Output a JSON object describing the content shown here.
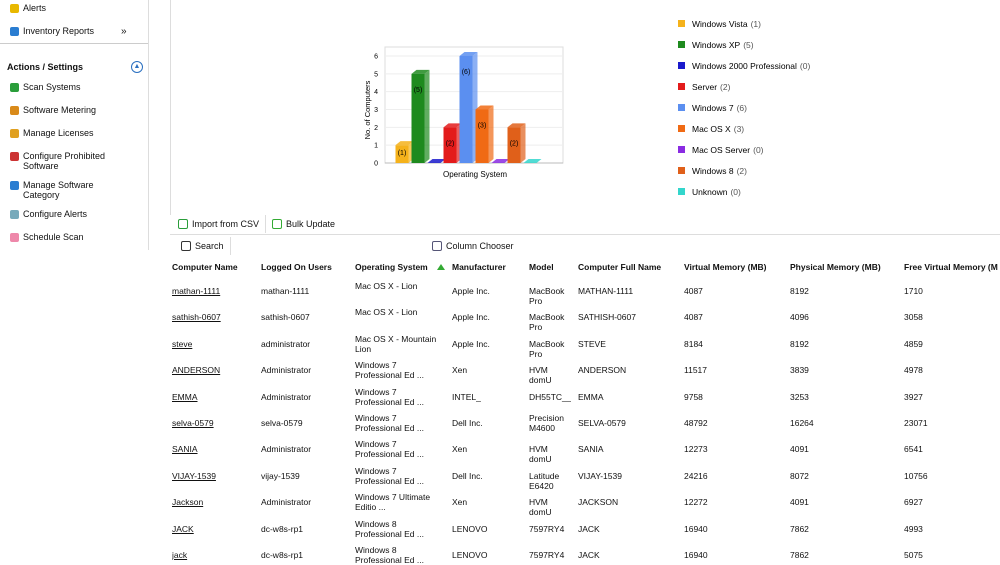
{
  "sidebar": {
    "top_items": [
      "Alerts",
      "Inventory Reports"
    ],
    "expand": "»",
    "section_title": "Actions / Settings",
    "actions": [
      "Scan Systems",
      "Software Metering",
      "Manage Licenses",
      "Configure Prohibited Software",
      "Manage Software Category",
      "Configure Alerts",
      "Schedule Scan"
    ]
  },
  "chart_data": {
    "type": "bar",
    "y_label": "No. of Computers",
    "x_label": "Operating System",
    "categories": [
      "Windows Vista",
      "Windows XP",
      "Windows 2000 Professional",
      "Server",
      "Windows 7",
      "Mac OS X",
      "Mac OS Server",
      "Windows 8",
      "Unknown"
    ],
    "values": [
      1,
      5,
      0,
      2,
      6,
      3,
      0,
      2,
      0
    ],
    "value_labels": [
      "(1)",
      "(5)",
      "(0)",
      "(2)",
      "(6)",
      "(3)",
      "(0)",
      "(2)",
      "(0)"
    ],
    "colors": [
      "#f5b21b",
      "#1e8a1e",
      "#1a1acc",
      "#e31b1b",
      "#5b8ff0",
      "#f06a14",
      "#8a2be2",
      "#e0601a",
      "#33d6cc"
    ],
    "ylim": [
      0,
      6
    ],
    "yticks": [
      0,
      1,
      2,
      3,
      4,
      5,
      6
    ],
    "grid": true,
    "legend": "right"
  },
  "toolbar": {
    "import": "Import from CSV",
    "bulk": "Bulk Update",
    "search": "Search",
    "columns": "Column Chooser"
  },
  "table": {
    "headers": [
      "Computer Name",
      "Logged On Users",
      "Operating System",
      "Manufacturer",
      "Model",
      "Computer Full Name",
      "Virtual Memory (MB)",
      "Physical Memory (MB)",
      "Free Virtual Memory (M"
    ],
    "rows": [
      [
        "mathan-1111",
        "mathan-1111",
        "Mac OS X - Lion",
        "Apple Inc.",
        "MacBook Pro",
        "MATHAN-1111",
        4087,
        8192,
        1710
      ],
      [
        "sathish-0607",
        "sathish-0607",
        "Mac OS X - Lion",
        "Apple Inc.",
        "MacBook Pro",
        "SATHISH-0607",
        4087,
        4096,
        3058
      ],
      [
        "steve",
        "administrator",
        "Mac OS X - Mountain Lion",
        "Apple Inc.",
        "MacBook Pro",
        "STEVE",
        8184,
        8192,
        4859
      ],
      [
        "ANDERSON",
        "Administrator",
        "Windows 7 Professional Ed ...",
        "Xen",
        "HVM domU",
        "ANDERSON",
        11517,
        3839,
        4978
      ],
      [
        "EMMA",
        "Administrator",
        "Windows 7 Professional Ed ...",
        "INTEL_",
        "DH55TC__",
        "EMMA",
        9758,
        3253,
        3927
      ],
      [
        "selva-0579",
        "selva-0579",
        "Windows 7 Professional Ed ...",
        "Dell Inc.",
        "Precision M4600",
        "SELVA-0579",
        48792,
        16264,
        23071
      ],
      [
        "SANIA",
        "Administrator",
        "Windows 7 Professional Ed ...",
        "Xen",
        "HVM domU",
        "SANIA",
        12273,
        4091,
        6541
      ],
      [
        "VIJAY-1539",
        "vijay-1539",
        "Windows 7 Professional Ed ...",
        "Dell Inc.",
        "Latitude E6420",
        "VIJAY-1539",
        24216,
        8072,
        10756
      ],
      [
        "Jackson",
        "Administrator",
        "Windows 7 Ultimate Editio ...",
        "Xen",
        "HVM domU",
        "JACKSON",
        12272,
        4091,
        6927
      ],
      [
        "JACK",
        "dc-w8s-rp1",
        "Windows 8 Professional Ed ...",
        "LENOVO",
        "7597RY4",
        "JACK",
        16940,
        7862,
        4993
      ],
      [
        "jack",
        "dc-w8s-rp1",
        "Windows 8 Professional Ed ...",
        "LENOVO",
        "7597RY4",
        "JACK",
        16940,
        7862,
        5075
      ]
    ]
  }
}
